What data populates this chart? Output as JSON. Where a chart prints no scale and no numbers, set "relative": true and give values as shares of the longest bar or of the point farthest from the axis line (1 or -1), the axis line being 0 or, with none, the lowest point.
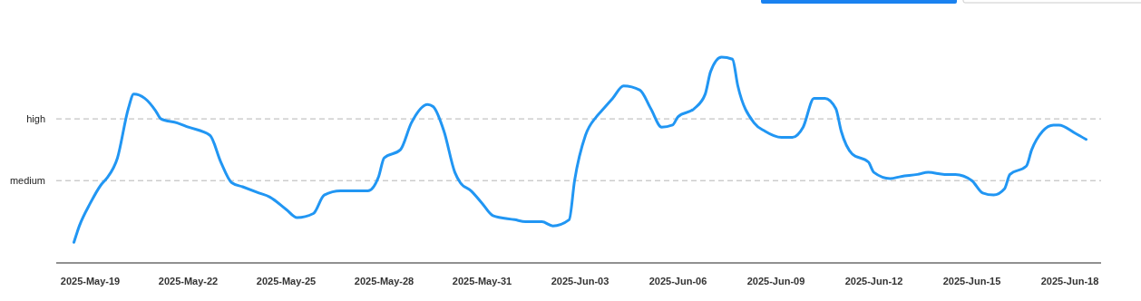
{
  "chart_data": {
    "type": "line",
    "relative": true,
    "xlim": [
      "2025-05-17T23:00",
      "2025-06-18T23:00"
    ],
    "line_style": "solid",
    "marker": "none",
    "xticks": [
      {
        "value": "2025-05-19",
        "label": "2025-May-19"
      },
      {
        "value": "2025-05-22",
        "label": "2025-May-22"
      },
      {
        "value": "2025-05-25",
        "label": "2025-May-25"
      },
      {
        "value": "2025-05-28",
        "label": "2025-May-28"
      },
      {
        "value": "2025-05-31",
        "label": "2025-May-31"
      },
      {
        "value": "2025-06-03",
        "label": "2025-Jun-03"
      },
      {
        "value": "2025-06-06",
        "label": "2025-Jun-06"
      },
      {
        "value": "2025-06-09",
        "label": "2025-Jun-09"
      },
      {
        "value": "2025-06-12",
        "label": "2025-Jun-12"
      },
      {
        "value": "2025-06-15",
        "label": "2025-Jun-15"
      },
      {
        "value": "2025-06-18",
        "label": "2025-Jun-18"
      }
    ],
    "ref_lines": [
      {
        "axis": "y",
        "value": 0.7,
        "label": "high",
        "color": "#b4b4b4",
        "line_style": "dashed"
      },
      {
        "axis": "y",
        "value": 0.4,
        "label": "medium",
        "color": "#b4b4b4",
        "line_style": "dashed"
      }
    ],
    "x": [
      "2025-05-18T12:00",
      "2025-05-18T16:00",
      "2025-05-19T00:00",
      "2025-05-19T08:00",
      "2025-05-19T12:00",
      "2025-05-19T20:00",
      "2025-05-20T04:00",
      "2025-05-20T08:00",
      "2025-05-20T16:00",
      "2025-05-21T00:00",
      "2025-05-21T04:00",
      "2025-05-21T16:00",
      "2025-05-22T00:00",
      "2025-05-22T16:00",
      "2025-05-23T00:00",
      "2025-05-23T08:00",
      "2025-05-23T16:00",
      "2025-05-24T04:00",
      "2025-05-24T12:00",
      "2025-05-25T00:00",
      "2025-05-25T08:00",
      "2025-05-25T20:00",
      "2025-05-26T04:00",
      "2025-05-26T16:00",
      "2025-05-27T00:00",
      "2025-05-27T12:00",
      "2025-05-27T20:00",
      "2025-05-28T00:00",
      "2025-05-28T12:00",
      "2025-05-28T20:00",
      "2025-05-29T08:00",
      "2025-05-29T12:00",
      "2025-05-29T20:00",
      "2025-05-30T04:00",
      "2025-05-30T08:00",
      "2025-05-30T16:00",
      "2025-05-31T00:00",
      "2025-05-31T08:00",
      "2025-06-01T00:00",
      "2025-06-01T08:00",
      "2025-06-01T20:00",
      "2025-06-02T04:00",
      "2025-06-02T16:00",
      "2025-06-02T20:00",
      "2025-06-03T04:00",
      "2025-06-03T12:00",
      "2025-06-03T16:00",
      "2025-06-04T00:00",
      "2025-06-04T08:00",
      "2025-06-04T20:00",
      "2025-06-05T04:00",
      "2025-06-05T12:00",
      "2025-06-05T20:00",
      "2025-06-06T00:00",
      "2025-06-06T12:00",
      "2025-06-06T20:00",
      "2025-06-07T00:00",
      "2025-06-07T08:00",
      "2025-06-07T16:00",
      "2025-06-07T20:00",
      "2025-06-08T08:00",
      "2025-06-08T16:00",
      "2025-06-09T04:00",
      "2025-06-09T12:00",
      "2025-06-09T20:00",
      "2025-06-10T04:00",
      "2025-06-10T12:00",
      "2025-06-10T20:00",
      "2025-06-11T00:00",
      "2025-06-11T08:00",
      "2025-06-11T20:00",
      "2025-06-12T00:00",
      "2025-06-12T12:00",
      "2025-06-12T20:00",
      "2025-06-13T08:00",
      "2025-06-13T16:00",
      "2025-06-14T04:00",
      "2025-06-14T12:00",
      "2025-06-15T00:00",
      "2025-06-15T08:00",
      "2025-06-15T16:00",
      "2025-06-16T00:00",
      "2025-06-16T04:00",
      "2025-06-16T16:00",
      "2025-06-16T20:00",
      "2025-06-17T04:00",
      "2025-06-17T12:00",
      "2025-06-17T16:00",
      "2025-06-18T04:00",
      "2025-06-18T12:00"
    ],
    "series": [
      {
        "color": "#2196f3",
        "values": [
          0.1,
          0.18,
          0.29,
          0.38,
          0.41,
          0.51,
          0.75,
          0.82,
          0.8,
          0.74,
          0.7,
          0.68,
          0.66,
          0.62,
          0.49,
          0.39,
          0.37,
          0.34,
          0.32,
          0.26,
          0.22,
          0.24,
          0.33,
          0.35,
          0.35,
          0.35,
          0.42,
          0.51,
          0.55,
          0.68,
          0.77,
          0.76,
          0.64,
          0.44,
          0.39,
          0.35,
          0.29,
          0.23,
          0.21,
          0.2,
          0.2,
          0.18,
          0.21,
          0.4,
          0.62,
          0.71,
          0.74,
          0.8,
          0.86,
          0.84,
          0.75,
          0.66,
          0.67,
          0.71,
          0.75,
          0.82,
          0.93,
          1.0,
          0.99,
          0.86,
          0.68,
          0.64,
          0.61,
          0.61,
          0.66,
          0.8,
          0.8,
          0.75,
          0.64,
          0.53,
          0.49,
          0.44,
          0.41,
          0.42,
          0.43,
          0.44,
          0.43,
          0.43,
          0.4,
          0.34,
          0.33,
          0.36,
          0.43,
          0.47,
          0.55,
          0.64,
          0.67,
          0.67,
          0.63,
          0.6
        ]
      }
    ]
  }
}
